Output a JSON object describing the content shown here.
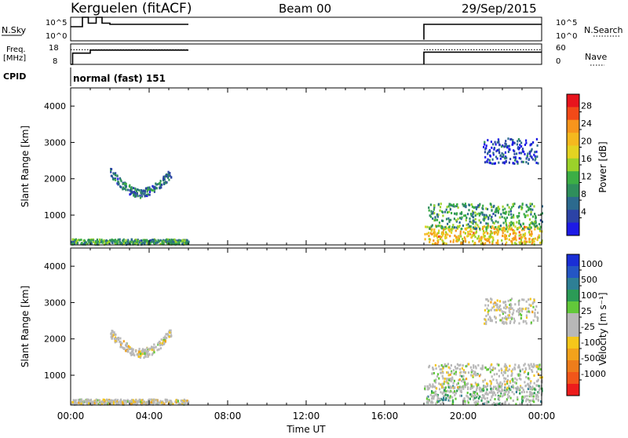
{
  "header": {
    "station": "Kerguelen (fitACF)",
    "beam": "Beam 00",
    "date": "29/Sep/2015"
  },
  "colors": {
    "line": "#000000",
    "ground_scatter": "#b8b8b8"
  },
  "chart_data": [
    {
      "type": "line",
      "panel": "noise",
      "left_label": "N.Sky",
      "right_label": "N.Search",
      "left_ticks": [
        "10^5",
        "10^0"
      ],
      "right_ticks": [
        "10^5",
        "10^0"
      ],
      "series": [
        {
          "name": "N.Sky",
          "style": "solid",
          "x": [
            0.0,
            0.6,
            0.6,
            0.9,
            0.9,
            1.3,
            1.3,
            1.6,
            1.6,
            2.0,
            2.0,
            6.0,
            18.0,
            18.0,
            24.0
          ],
          "y": [
            0.6,
            0.6,
            1.0,
            1.0,
            0.75,
            0.75,
            1.0,
            1.0,
            0.75,
            0.75,
            0.7,
            0.7,
            0.05,
            0.7,
            0.7
          ]
        }
      ]
    },
    {
      "type": "line",
      "panel": "frequency",
      "left_label": "Freq. [MHz]",
      "right_label": "Nave",
      "left_ticks": [
        "18",
        "8"
      ],
      "right_ticks": [
        "60",
        "0"
      ],
      "series": [
        {
          "name": "Freq.",
          "style": "solid",
          "x": [
            0.0,
            0.1,
            0.1,
            1.0,
            1.0,
            6.0,
            18.0,
            18.0,
            24.0
          ],
          "y": [
            0.0,
            0.0,
            0.55,
            0.55,
            0.7,
            0.7,
            0.0,
            0.6,
            0.6
          ]
        },
        {
          "name": "Nave",
          "style": "dotted",
          "x": [
            0.0,
            6.0,
            18.0,
            24.0
          ],
          "y": [
            0.72,
            0.72,
            0.72,
            0.72
          ]
        }
      ]
    },
    {
      "type": "label",
      "panel": "cpid",
      "left_label": "CPID",
      "text": "normal (fast) 151"
    },
    {
      "type": "heatmap",
      "panel": "power",
      "ylabel": "Slant Range [km]",
      "yticks": [
        "4000",
        "3000",
        "2000",
        "1000"
      ],
      "ylim": [
        180,
        4500
      ],
      "xlim": [
        0,
        24
      ],
      "colorbar": {
        "label": "Power [dB]",
        "ticks": [
          "28",
          "24",
          "20",
          "16",
          "12",
          "8",
          "4"
        ],
        "colors": [
          "#e8141d",
          "#f24a18",
          "#f7951c",
          "#f5b91e",
          "#e4d321",
          "#9bd22a",
          "#3cae45",
          "#2f8f5c",
          "#2c6a8e",
          "#2c43a6",
          "#1d1ae6"
        ]
      },
      "regions": [
        {
          "x": [
            2.0,
            5.1
          ],
          "y": [
            1450,
            2150
          ],
          "level": 0.25,
          "arc": true
        },
        {
          "x": [
            0.0,
            6.0
          ],
          "y": [
            180,
            320
          ],
          "level": 0.35
        },
        {
          "x": [
            18.0,
            24.0
          ],
          "y": [
            180,
            700
          ],
          "level": 0.65
        },
        {
          "x": [
            21.0,
            23.8
          ],
          "y": [
            2400,
            3100
          ],
          "level": 0.12
        },
        {
          "x": [
            18.2,
            24.0
          ],
          "y": [
            600,
            1300
          ],
          "level": 0.35
        }
      ]
    },
    {
      "type": "heatmap",
      "panel": "velocity",
      "ylabel": "Slant Range [km]",
      "yticks": [
        "4000",
        "3000",
        "2000",
        "1000"
      ],
      "ylim": [
        180,
        4500
      ],
      "xlim": [
        0,
        24
      ],
      "xticks": [
        "00:00",
        "04:00",
        "08:00",
        "12:00",
        "16:00",
        "20:00",
        "00:00"
      ],
      "xlabel": "Time UT",
      "colorbar": {
        "label": "Velocity [m s⁻¹]",
        "ticks": [
          "1000",
          "500",
          "100",
          "25",
          "-25",
          "-100",
          "-500",
          "-1000"
        ],
        "colors": [
          "#1a2fd6",
          "#2456c4",
          "#2e7f95",
          "#2b9b56",
          "#62c83a",
          "#b8b8b8",
          "#b8b8b8",
          "#f5c71a",
          "#f2a21b",
          "#ee7d1b",
          "#f2561a",
          "#ed1c1c"
        ]
      },
      "regions": [
        {
          "x": [
            2.0,
            5.1
          ],
          "y": [
            1450,
            2150
          ],
          "level": 0.45,
          "arc": true
        },
        {
          "x": [
            0.0,
            6.0
          ],
          "y": [
            180,
            320
          ],
          "level": 0.45
        },
        {
          "x": [
            18.0,
            24.0
          ],
          "y": [
            180,
            700
          ],
          "level": 0.62
        },
        {
          "x": [
            21.0,
            23.8
          ],
          "y": [
            2400,
            3100
          ],
          "level": 0.48
        },
        {
          "x": [
            18.2,
            24.0
          ],
          "y": [
            600,
            1300
          ],
          "level": 0.5
        }
      ]
    }
  ]
}
